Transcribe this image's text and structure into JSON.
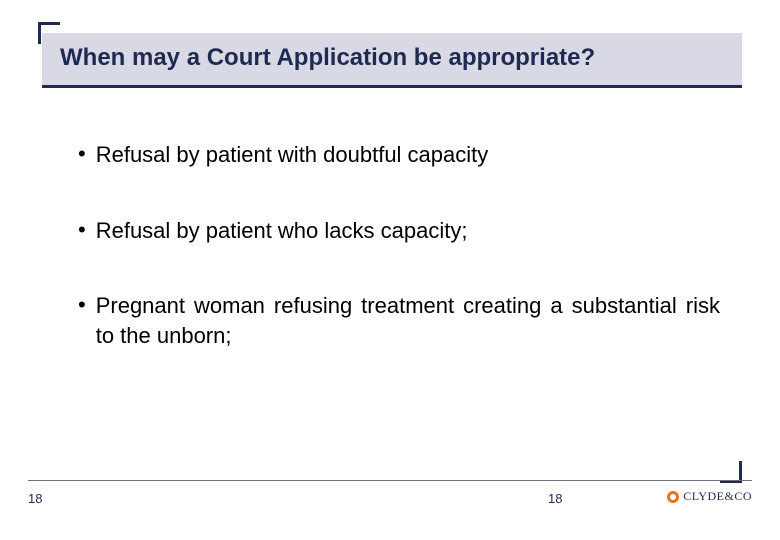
{
  "colors": {
    "accent": "#1f2a52",
    "title_band_bg": "#d9d9e5",
    "body_text": "#000000",
    "footer_rule": "#6b6b7a",
    "logo_orange": "#ea7125",
    "page_bg": "#ffffff"
  },
  "typography": {
    "title_fontsize": 24,
    "title_weight": "bold",
    "body_fontsize": 22,
    "footer_fontsize": 13,
    "logo_fontsize": 12,
    "font_family": "Arial"
  },
  "title": "When may a Court Application be appropriate?",
  "bullets": [
    {
      "text": "Refusal by patient with doubtful capacity",
      "justify": false
    },
    {
      "text": "Refusal by patient who lacks capacity;",
      "justify": false
    },
    {
      "text": "Pregnant woman refusing treatment creating a substantial risk to the unborn;",
      "justify": true
    }
  ],
  "footer": {
    "page_left": "18",
    "page_center": "18",
    "logo_text": "CLYDE&CO"
  }
}
